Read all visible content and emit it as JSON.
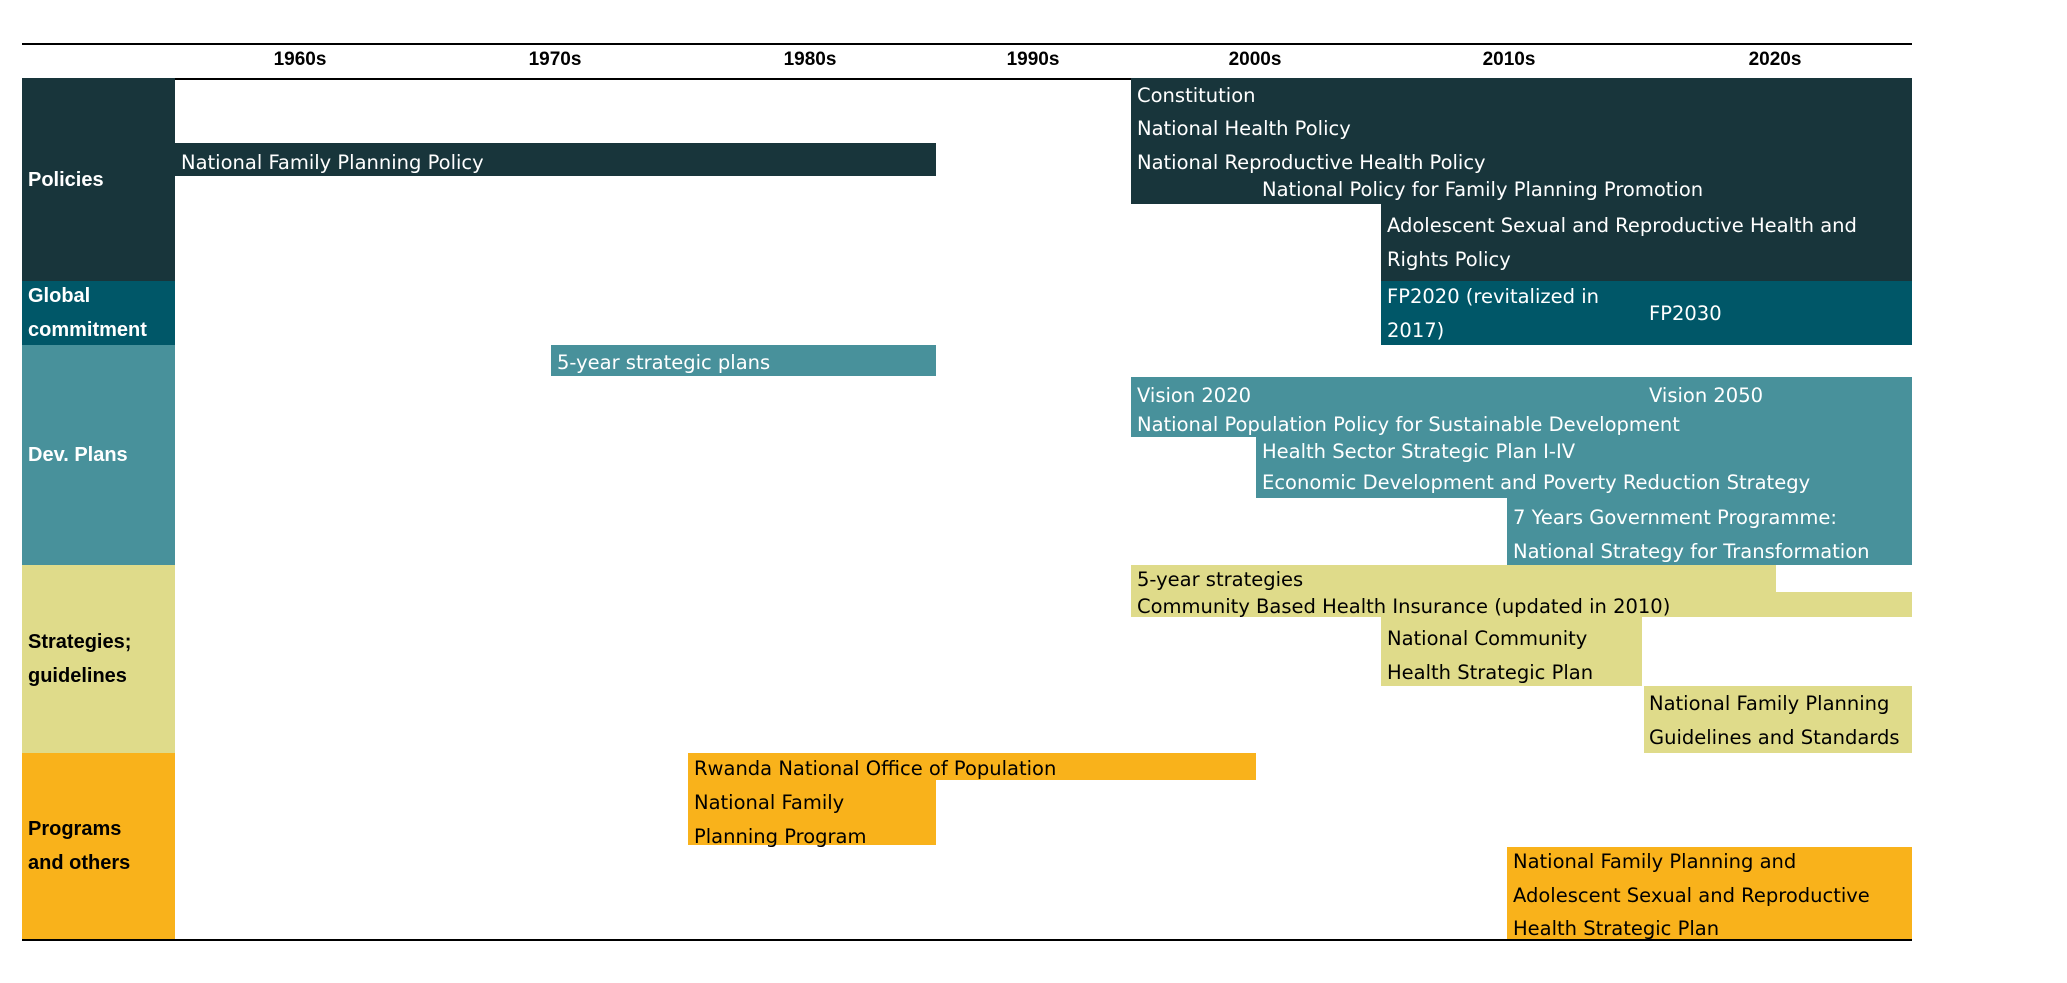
{
  "colors": {
    "policies": "#18353b",
    "global": "#005768",
    "dev": "#48919b",
    "strategies": "#dfdb8a",
    "programs": "#f9b21b",
    "text_light": "#ffffff",
    "text_dark": "#000000"
  },
  "decades": [
    "1960s",
    "1970s",
    "1980s",
    "1990s",
    "2000s",
    "2010s",
    "2020s"
  ],
  "categories": [
    {
      "id": "policies",
      "label": "Policies",
      "text_color": "#ffffff"
    },
    {
      "id": "global",
      "label": "Global\ncommitment",
      "text_color": "#ffffff"
    },
    {
      "id": "dev",
      "label": "Dev. Plans",
      "text_color": "#ffffff"
    },
    {
      "id": "strategies",
      "label": "Strategies;\nguidelines",
      "text_color": "#000000"
    },
    {
      "id": "programs",
      "label": "Programs\nand others",
      "text_color": "#000000"
    }
  ],
  "items": [
    {
      "id": "constitution",
      "category": "policies",
      "label": "Constitution"
    },
    {
      "id": "national-health-policy",
      "category": "policies",
      "label": "National Health Policy"
    },
    {
      "id": "national-family-planning-policy",
      "category": "policies",
      "label": "National Family Planning Policy"
    },
    {
      "id": "national-reproductive-health-policy",
      "category": "policies",
      "label": "National Reproductive Health Policy"
    },
    {
      "id": "national-policy-fp-promotion",
      "category": "policies",
      "label": "National Policy for Family Planning Promotion"
    },
    {
      "id": "adolescent-srh-rights-policy",
      "category": "policies",
      "label": "Adolescent Sexual and Reproductive Health and\nRights Policy"
    },
    {
      "id": "fp2020",
      "category": "global",
      "label": "FP2020 (revitalized in\n2017)"
    },
    {
      "id": "fp2030",
      "category": "global",
      "label": "FP2030"
    },
    {
      "id": "five-year-strategic-plans",
      "category": "dev",
      "label": "5-year strategic plans"
    },
    {
      "id": "vision-2020",
      "category": "dev",
      "label": "Vision 2020"
    },
    {
      "id": "vision-2050",
      "category": "dev",
      "label": "Vision 2050"
    },
    {
      "id": "national-population-policy",
      "category": "dev",
      "label": "National Population Policy for Sustainable Development"
    },
    {
      "id": "health-sector-strategic-plan",
      "category": "dev",
      "label": "Health Sector Strategic Plan I-IV"
    },
    {
      "id": "edprs",
      "category": "dev",
      "label": "Economic Development and Poverty Reduction Strategy"
    },
    {
      "id": "seven-years-gov-programme",
      "category": "dev",
      "label": "7 Years Government Programme:\nNational Strategy for Transformation"
    },
    {
      "id": "five-year-strategies",
      "category": "strategies",
      "label": "5-year strategies"
    },
    {
      "id": "cbhi",
      "category": "strategies",
      "label": "Community Based Health Insurance (updated in 2010)"
    },
    {
      "id": "national-community-health-strategic-plan",
      "category": "strategies",
      "label": "National Community\nHealth Strategic Plan"
    },
    {
      "id": "national-fp-guidelines",
      "category": "strategies",
      "label": "National Family Planning\nGuidelines and Standards"
    },
    {
      "id": "rwanda-national-office-population",
      "category": "programs",
      "label": "Rwanda National Office of Population"
    },
    {
      "id": "national-fp-program",
      "category": "programs",
      "label": "National Family\nPlanning Program"
    },
    {
      "id": "national-fp-asrh-strategic-plan",
      "category": "programs",
      "label": "National Family Planning and\nAdolescent Sexual and Reproductive\nHealth Strategic Plan"
    }
  ]
}
